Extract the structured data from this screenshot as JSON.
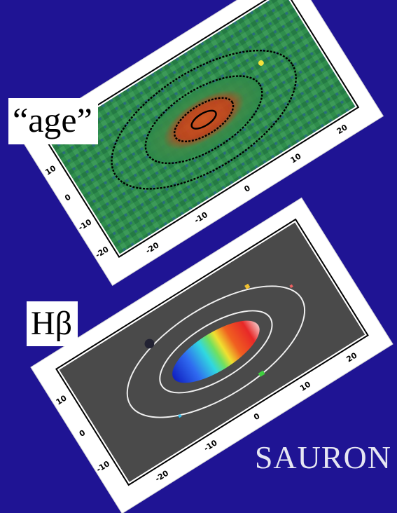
{
  "labels": {
    "age_panel": "“age”",
    "hbeta_panel": "Hβ"
  },
  "brand": "SAURON",
  "age_panel": {
    "x_ticks": [
      "-20",
      "-10",
      "0",
      "10",
      "20"
    ],
    "y_ticks": [
      "-20",
      "-10",
      "0",
      "10"
    ],
    "colors": {
      "map_base": "#2d8a4a",
      "core": "#d43a1a",
      "contour": "#000000"
    }
  },
  "hbeta_panel": {
    "x_ticks": [
      "-20",
      "-10",
      "0",
      "10",
      "20"
    ],
    "y_ticks": [
      "-10",
      "0",
      "10"
    ],
    "colors": {
      "background": "#4a4a4a",
      "contour": "#f0f0f0"
    }
  },
  "colors": {
    "page_background": "#1f1494"
  }
}
